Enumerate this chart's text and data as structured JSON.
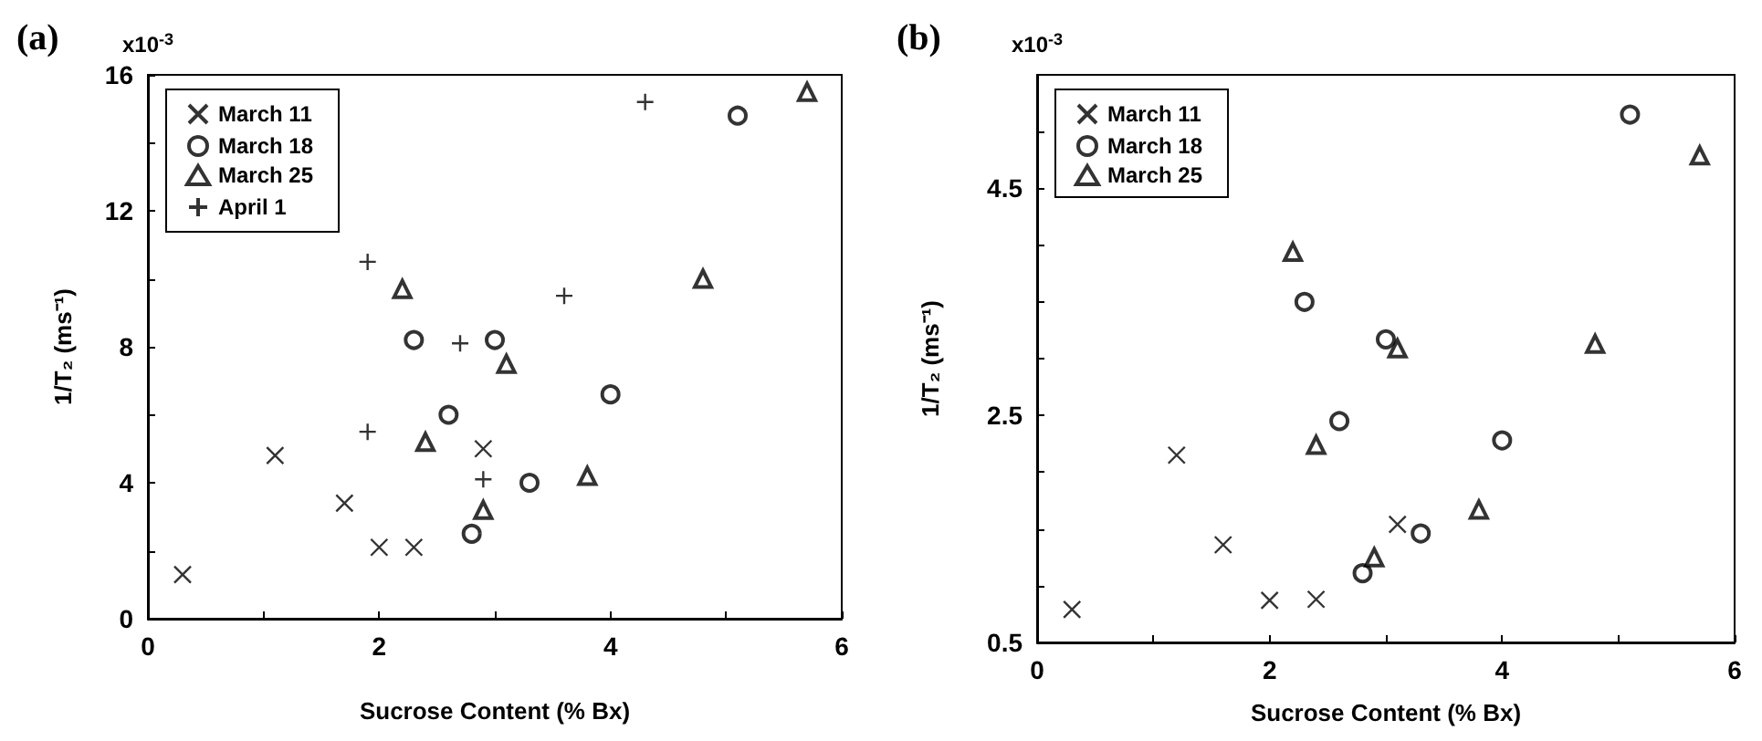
{
  "chart_data": [
    {
      "type": "scatter",
      "title": "(a)",
      "xlabel": "Sucrose Content (% Bx)",
      "ylabel": "1/T₂ (ms⁻¹)",
      "annotations": [
        "x10$^{-3}$"
      ],
      "xlim": [
        0,
        6
      ],
      "xticks": [
        0,
        {
          "value": 1,
          "label": null
        },
        2,
        {
          "value": 3,
          "label": null
        },
        4,
        {
          "value": 5,
          "label": null
        },
        6
      ],
      "ylim": [
        0,
        16
      ],
      "yticks": [
        0,
        {
          "value": 2,
          "label": null
        },
        4,
        {
          "value": 6,
          "label": null
        },
        8,
        {
          "value": 10,
          "label": null
        },
        12,
        {
          "value": 14,
          "label": null
        },
        16
      ],
      "legend": "top left",
      "grid": false,
      "series": [
        {
          "name": "March 11",
          "color": "#000000",
          "marker": "x",
          "x": [
            0.3,
            1.1,
            1.7,
            2.0,
            2.3,
            2.9
          ],
          "values": [
            1.3,
            4.8,
            3.4,
            2.1,
            2.1,
            5.0
          ]
        },
        {
          "name": "March 18",
          "color": "#000000",
          "marker": "circle",
          "x": [
            2.3,
            3.0,
            5.1,
            2.6,
            4.0,
            3.3,
            2.8
          ],
          "values": [
            8.2,
            8.2,
            14.8,
            6.0,
            6.6,
            4.0,
            2.5
          ]
        },
        {
          "name": "March 25",
          "color": "#000000",
          "marker": "triangle",
          "x": [
            5.7,
            4.8,
            2.2,
            3.1,
            2.4,
            3.8,
            2.9
          ],
          "values": [
            15.5,
            10.0,
            9.7,
            7.5,
            5.2,
            4.2,
            3.2
          ]
        },
        {
          "name": "April 1",
          "color": "#000000",
          "marker": "cross",
          "x": [
            4.3,
            1.9,
            3.6,
            2.7,
            1.9,
            2.9
          ],
          "values": [
            15.2,
            10.5,
            9.5,
            8.1,
            5.5,
            4.1
          ]
        }
      ]
    },
    {
      "type": "scatter",
      "title": "(b)",
      "xlabel": "Sucrose Content (% Bx)",
      "ylabel": "1/T₂ (ms⁻¹)",
      "annotations": [
        "x10$^{-3}$"
      ],
      "xlim": [
        0,
        6
      ],
      "xticks": [
        0,
        {
          "value": 1,
          "label": null
        },
        2,
        {
          "value": 3,
          "label": null
        },
        4,
        {
          "value": 5,
          "label": null
        },
        6
      ],
      "ylim": [
        0.5,
        5.5
      ],
      "yticks": [
        0.5,
        {
          "value": 1,
          "label": null
        },
        {
          "value": 1.5,
          "label": null
        },
        {
          "value": 2,
          "label": null
        },
        2.5,
        {
          "value": 3,
          "label": null
        },
        {
          "value": 3.5,
          "label": null
        },
        {
          "value": 4,
          "label": null
        },
        4.5,
        {
          "value": 5,
          "label": null
        }
      ],
      "legend": "top left",
      "grid": false,
      "series": [
        {
          "name": "March 11",
          "color": "#000000",
          "marker": "x",
          "x": [
            0.3,
            1.2,
            1.6,
            2.0,
            2.4,
            3.1
          ],
          "values": [
            0.79,
            2.15,
            1.36,
            0.87,
            0.88,
            1.54
          ]
        },
        {
          "name": "March 18",
          "color": "#000000",
          "marker": "circle",
          "x": [
            5.1,
            2.3,
            3.0,
            2.6,
            4.0,
            3.3,
            2.8
          ],
          "values": [
            5.15,
            3.5,
            3.17,
            2.45,
            2.28,
            1.46,
            1.11
          ]
        },
        {
          "name": "March 25",
          "color": "#000000",
          "marker": "triangle",
          "x": [
            5.7,
            2.2,
            3.1,
            4.8,
            2.4,
            3.8,
            2.9
          ],
          "values": [
            4.79,
            3.94,
            3.09,
            3.13,
            2.24,
            1.67,
            1.25
          ]
        }
      ]
    }
  ]
}
